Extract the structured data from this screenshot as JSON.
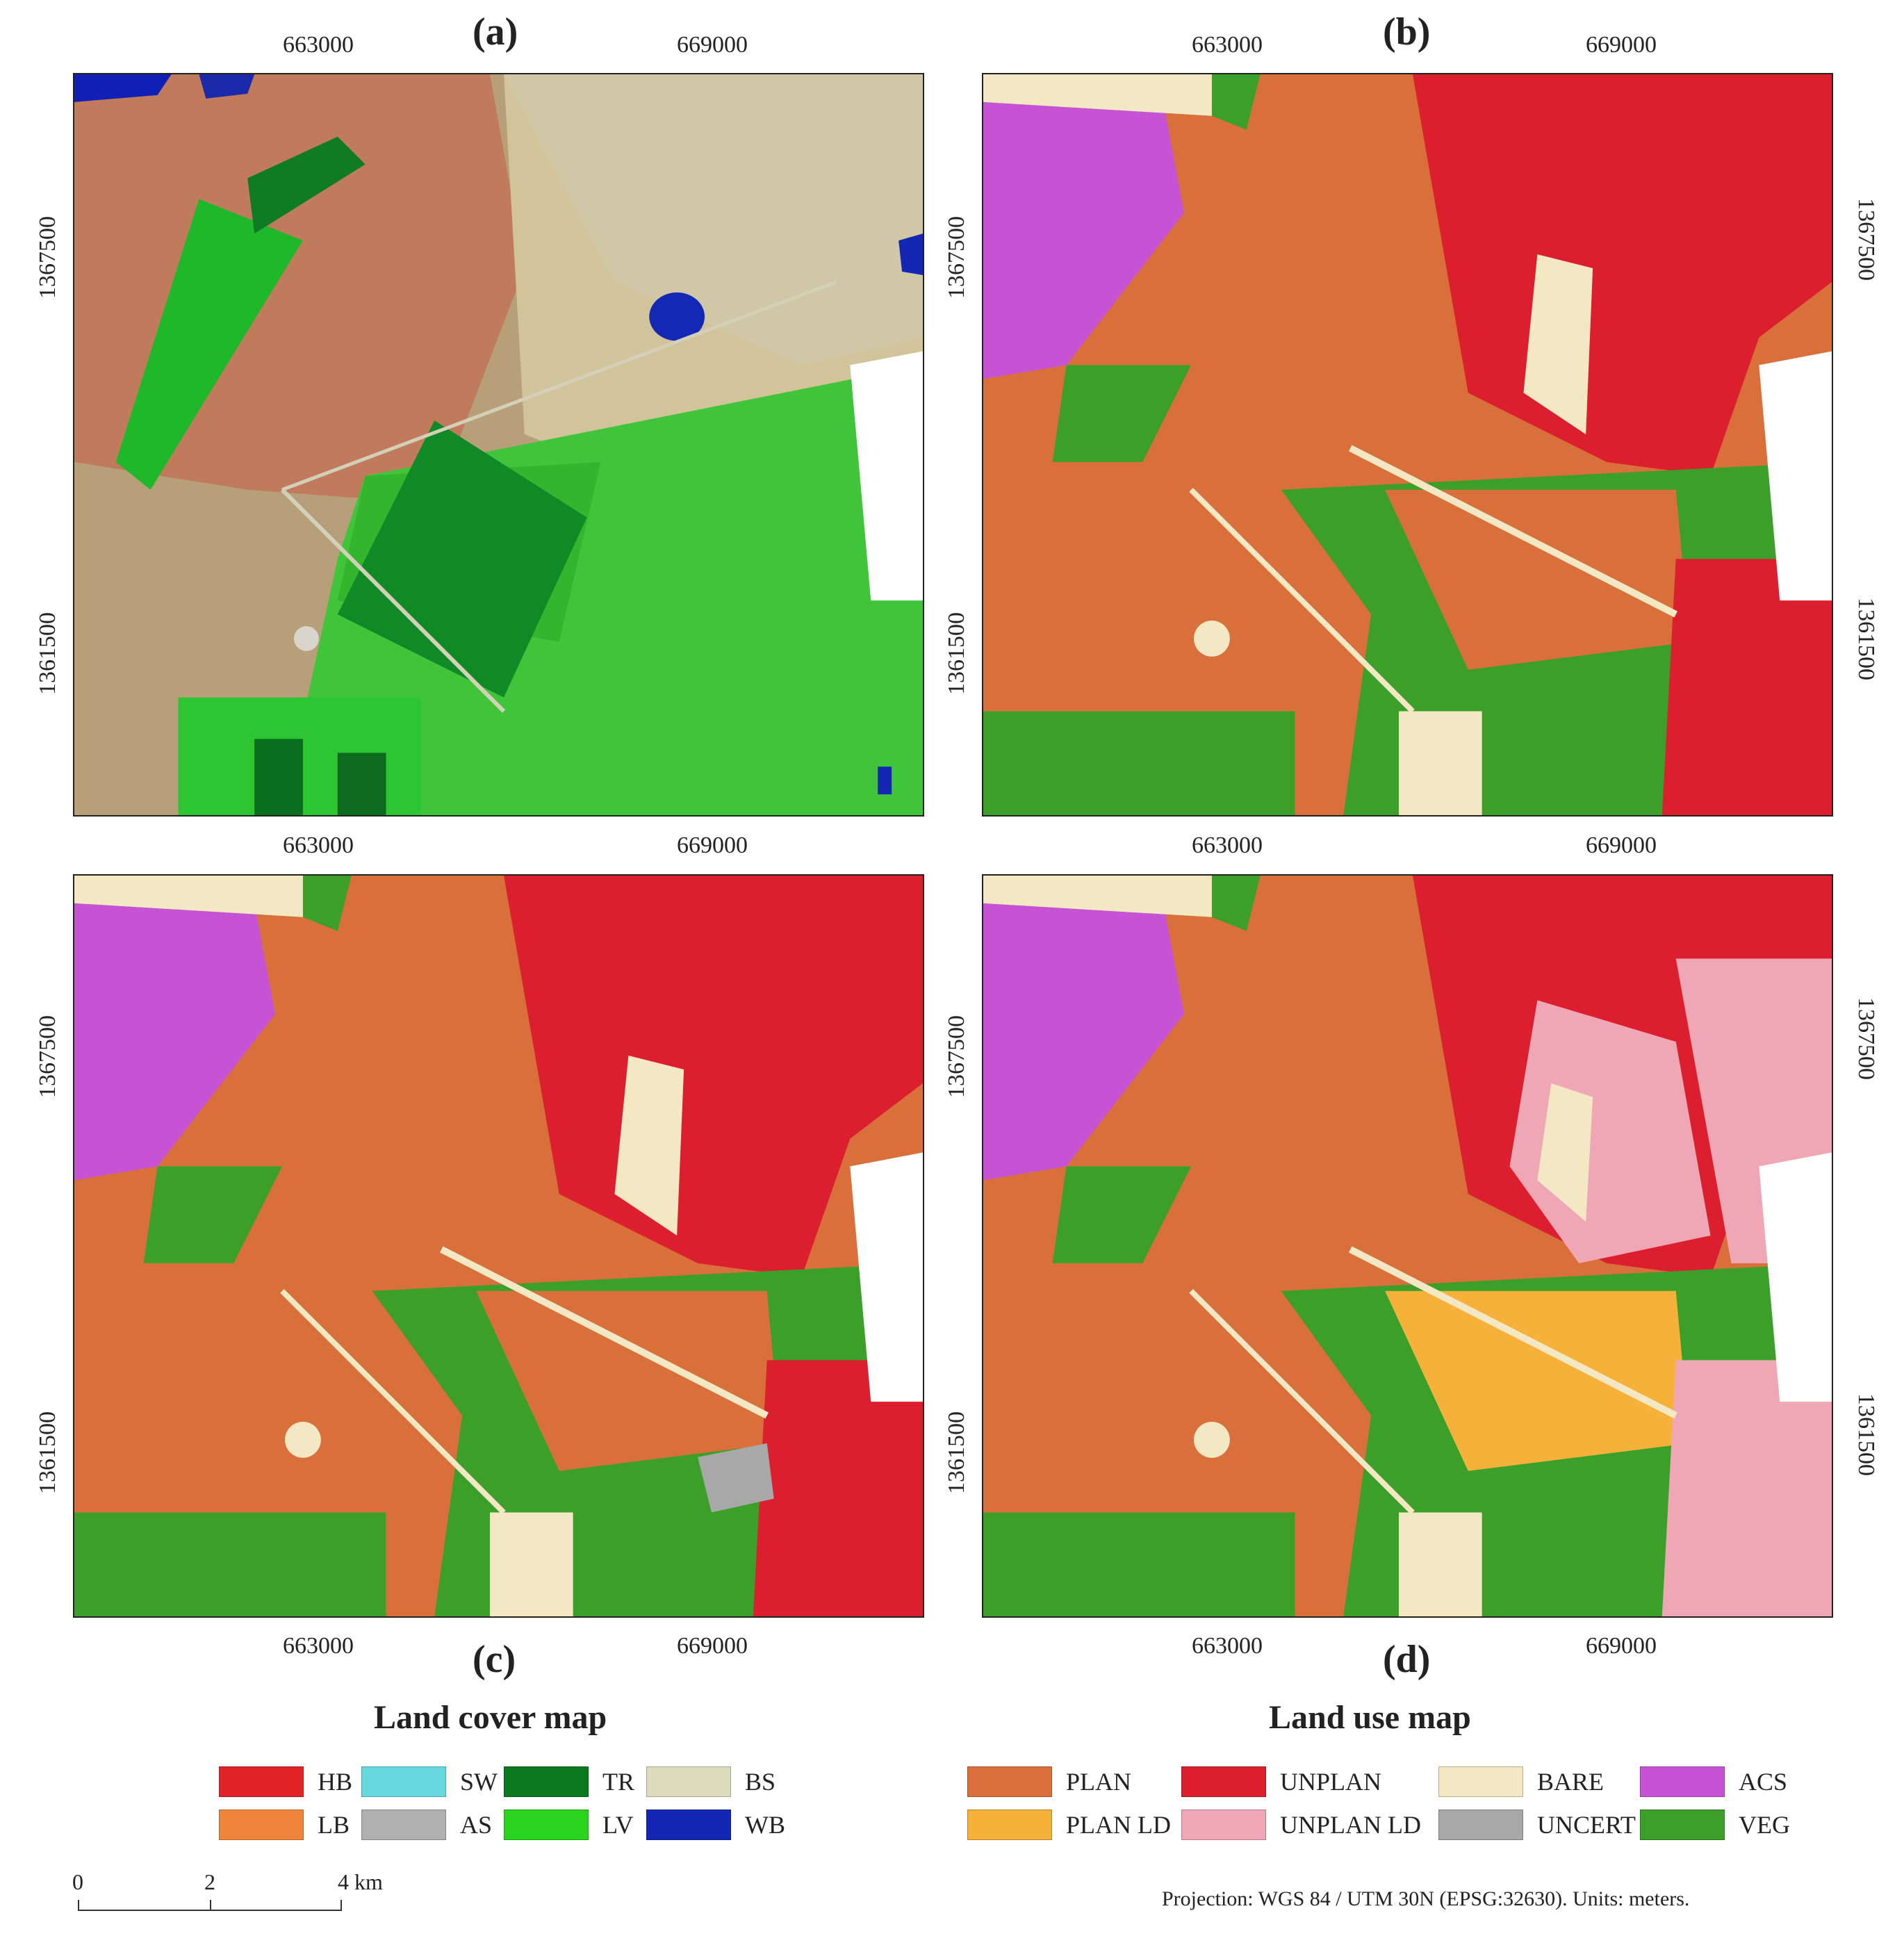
{
  "panels": {
    "a": {
      "label": "(a)"
    },
    "b": {
      "label": "(b)"
    },
    "c": {
      "label": "(c)"
    },
    "d": {
      "label": "(d)"
    }
  },
  "ticks": {
    "x": [
      "663000",
      "669000"
    ],
    "y": [
      "1367500",
      "1361500"
    ]
  },
  "legend_cover": {
    "title": "Land cover map",
    "items": [
      {
        "label": "HB",
        "color": "#e0242a"
      },
      {
        "label": "SW",
        "color": "#66d9df"
      },
      {
        "label": "TR",
        "color": "#0b7a1f"
      },
      {
        "label": "BS",
        "color": "#dcdcbc"
      },
      {
        "label": "LB",
        "color": "#f0843a"
      },
      {
        "label": "AS",
        "color": "#b0b0b0"
      },
      {
        "label": "LV",
        "color": "#2bd41f"
      },
      {
        "label": "WB",
        "color": "#1426b4"
      }
    ]
  },
  "legend_use": {
    "title": "Land use map",
    "items": [
      {
        "label": "PLAN",
        "color": "#d9703c"
      },
      {
        "label": "UNPLAN",
        "color": "#dc1f2e"
      },
      {
        "label": "BARE",
        "color": "#f3e8c3"
      },
      {
        "label": "ACS",
        "color": "#c653d3"
      },
      {
        "label": "PLAN LD",
        "color": "#f6b13a"
      },
      {
        "label": "UNPLAN LD",
        "color": "#f0a7b5"
      },
      {
        "label": "UNCERT",
        "color": "#a8a8a8"
      },
      {
        "label": "VEG",
        "color": "#3c9f2a"
      }
    ]
  },
  "scale_bar": {
    "labels": [
      "0",
      "2",
      "4 km"
    ]
  },
  "footer": {
    "projection": "Projection:  WGS 84 / UTM 30N (EPSG:32630). Units: meters."
  }
}
